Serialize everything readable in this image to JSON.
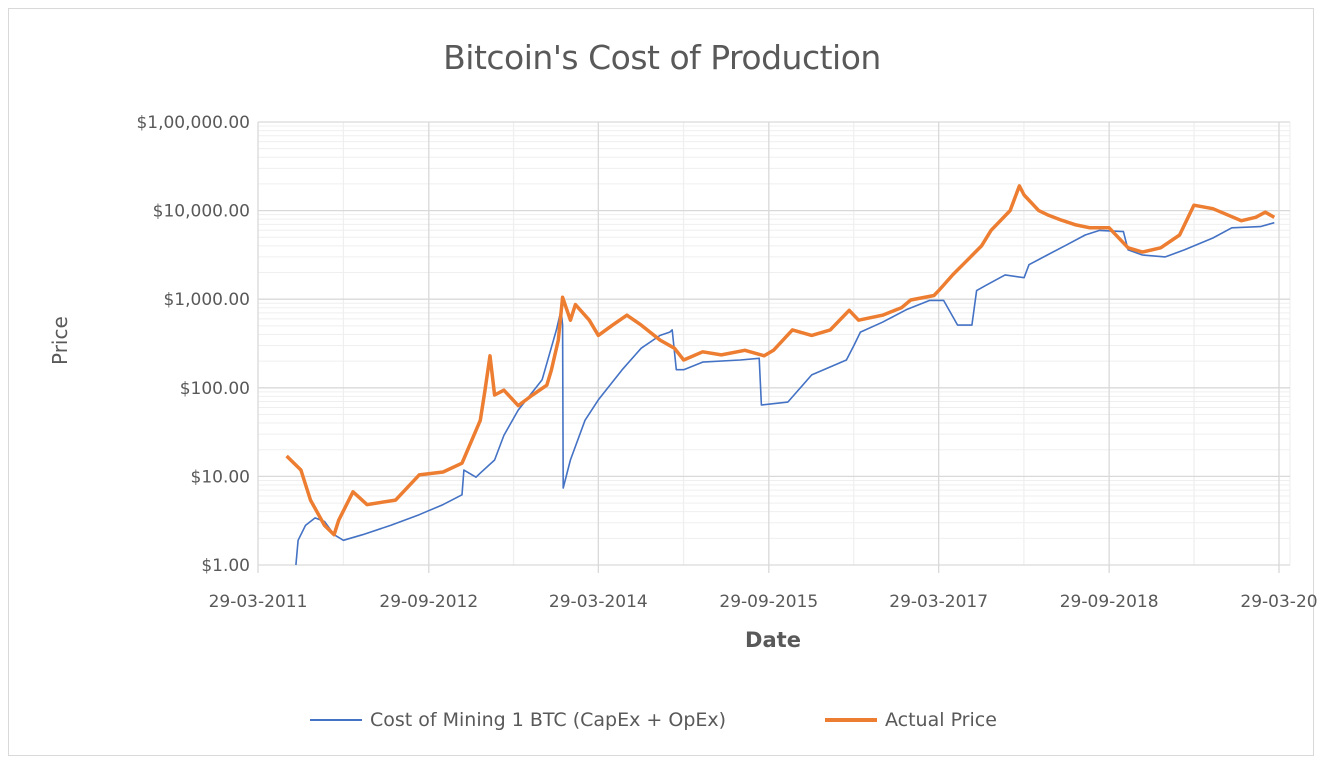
{
  "chart_data": {
    "type": "line",
    "title": "Bitcoin's Cost of Production",
    "xlabel": "Date",
    "ylabel": "Price",
    "y_scale": "log",
    "ylim": [
      1,
      100000
    ],
    "y_ticks": [
      1,
      10,
      100,
      1000,
      10000,
      100000
    ],
    "y_tick_labels": [
      "$1.00",
      "$10.00",
      "$100.00",
      "$1,000.00",
      "$10,000.00",
      "$1,00,000.00"
    ],
    "x_ticks": [
      "2011-03-29",
      "2012-09-29",
      "2014-03-29",
      "2015-09-29",
      "2017-03-29",
      "2018-09-29",
      "2020-03-29"
    ],
    "x_tick_labels": [
      "29-03-2011",
      "29-09-2012",
      "29-03-2014",
      "29-09-2015",
      "29-03-2017",
      "29-09-2018",
      "29-03-20"
    ],
    "grid": true,
    "legend_position": "bottom",
    "series": [
      {
        "name": "Cost of Mining 1 BTC (CapEx + OpEx)",
        "color": "#4472c4",
        "points": [
          [
            "2011-07-29",
            1
          ],
          [
            "2011-08-05",
            1.9
          ],
          [
            "2011-08-29",
            2.8
          ],
          [
            "2011-09-29",
            3.4
          ],
          [
            "2011-10-29",
            3.1
          ],
          [
            "2011-11-29",
            2.2
          ],
          [
            "2011-12-29",
            1.9
          ],
          [
            "2012-02-29",
            2.2
          ],
          [
            "2012-05-29",
            2.8
          ],
          [
            "2012-08-29",
            3.7
          ],
          [
            "2012-11-14",
            4.8
          ],
          [
            "2013-01-14",
            6.2
          ],
          [
            "2013-01-20",
            11.8
          ],
          [
            "2013-02-28",
            9.8
          ],
          [
            "2013-03-14",
            10.9
          ],
          [
            "2013-04-29",
            15.3
          ],
          [
            "2013-05-29",
            29
          ],
          [
            "2013-07-14",
            56
          ],
          [
            "2013-09-29",
            123
          ],
          [
            "2013-11-14",
            450
          ],
          [
            "2013-11-29",
            760
          ],
          [
            "2013-12-04",
            510
          ],
          [
            "2013-12-06",
            7.4
          ],
          [
            "2013-12-29",
            15.3
          ],
          [
            "2014-02-14",
            43
          ],
          [
            "2014-03-29",
            73
          ],
          [
            "2014-06-14",
            160
          ],
          [
            "2014-08-14",
            280
          ],
          [
            "2014-10-14",
            390
          ],
          [
            "2014-11-14",
            425
          ],
          [
            "2014-11-22",
            450
          ],
          [
            "2014-12-05",
            160
          ],
          [
            "2014-12-29",
            160
          ],
          [
            "2015-02-28",
            195
          ],
          [
            "2015-06-29",
            206
          ],
          [
            "2015-08-29",
            215
          ],
          [
            "2015-09-05",
            64
          ],
          [
            "2015-11-29",
            69
          ],
          [
            "2016-02-14",
            140
          ],
          [
            "2016-06-05",
            206
          ],
          [
            "2016-06-29",
            300
          ],
          [
            "2016-07-20",
            425
          ],
          [
            "2016-09-29",
            550
          ],
          [
            "2016-12-14",
            760
          ],
          [
            "2017-02-28",
            970
          ],
          [
            "2017-04-14",
            970
          ],
          [
            "2017-05-29",
            510
          ],
          [
            "2017-07-14",
            510
          ],
          [
            "2017-07-29",
            1250
          ],
          [
            "2017-08-29",
            1440
          ],
          [
            "2017-10-29",
            1880
          ],
          [
            "2017-12-29",
            1750
          ],
          [
            "2018-01-14",
            2450
          ],
          [
            "2018-03-14",
            3150
          ],
          [
            "2018-05-14",
            4080
          ],
          [
            "2018-07-14",
            5300
          ],
          [
            "2018-08-29",
            5980
          ],
          [
            "2018-11-14",
            5800
          ],
          [
            "2018-11-29",
            3600
          ],
          [
            "2019-01-14",
            3150
          ],
          [
            "2019-03-29",
            3000
          ],
          [
            "2019-05-29",
            3600
          ],
          [
            "2019-08-29",
            4900
          ],
          [
            "2019-10-29",
            6400
          ],
          [
            "2020-01-29",
            6600
          ],
          [
            "2020-03-14",
            7300
          ]
        ]
      },
      {
        "name": "Actual Price",
        "color": "#ed7d31",
        "points": [
          [
            "2011-06-29",
            17
          ],
          [
            "2011-08-14",
            11.8
          ],
          [
            "2011-09-14",
            5.4
          ],
          [
            "2011-10-29",
            2.8
          ],
          [
            "2011-11-29",
            2.2
          ],
          [
            "2011-12-14",
            3.2
          ],
          [
            "2012-01-29",
            6.7
          ],
          [
            "2012-03-14",
            4.8
          ],
          [
            "2012-06-14",
            5.4
          ],
          [
            "2012-08-29",
            10.4
          ],
          [
            "2012-11-14",
            11.2
          ],
          [
            "2013-01-14",
            14.1
          ],
          [
            "2013-03-14",
            43
          ],
          [
            "2013-03-29",
            94
          ],
          [
            "2013-04-14",
            230
          ],
          [
            "2013-04-29",
            83
          ],
          [
            "2013-05-29",
            94
          ],
          [
            "2013-07-14",
            63
          ],
          [
            "2013-08-29",
            83
          ],
          [
            "2013-10-14",
            107
          ],
          [
            "2013-10-29",
            159
          ],
          [
            "2013-11-20",
            345
          ],
          [
            "2013-12-04",
            1050
          ],
          [
            "2013-12-29",
            580
          ],
          [
            "2014-01-14",
            870
          ],
          [
            "2014-02-28",
            580
          ],
          [
            "2014-03-29",
            390
          ],
          [
            "2014-05-14",
            510
          ],
          [
            "2014-06-29",
            660
          ],
          [
            "2014-08-14",
            510
          ],
          [
            "2014-10-14",
            345
          ],
          [
            "2014-11-29",
            280
          ],
          [
            "2014-12-29",
            206
          ],
          [
            "2015-02-28",
            255
          ],
          [
            "2015-04-29",
            235
          ],
          [
            "2015-07-14",
            265
          ],
          [
            "2015-09-14",
            230
          ],
          [
            "2015-10-14",
            265
          ],
          [
            "2015-12-14",
            450
          ],
          [
            "2016-02-14",
            390
          ],
          [
            "2016-04-14",
            450
          ],
          [
            "2016-06-14",
            750
          ],
          [
            "2016-07-14",
            580
          ],
          [
            "2016-09-29",
            660
          ],
          [
            "2016-11-29",
            800
          ],
          [
            "2016-12-29",
            980
          ],
          [
            "2017-03-14",
            1100
          ],
          [
            "2017-03-29",
            1250
          ],
          [
            "2017-05-14",
            1900
          ],
          [
            "2017-06-29",
            2750
          ],
          [
            "2017-08-14",
            4000
          ],
          [
            "2017-09-14",
            6000
          ],
          [
            "2017-11-14",
            10000
          ],
          [
            "2017-12-14",
            19000
          ],
          [
            "2017-12-29",
            15000
          ],
          [
            "2018-02-14",
            10000
          ],
          [
            "2018-03-14",
            9000
          ],
          [
            "2018-04-29",
            7800
          ],
          [
            "2018-06-14",
            6900
          ],
          [
            "2018-07-29",
            6400
          ],
          [
            "2018-09-29",
            6400
          ],
          [
            "2018-11-29",
            3800
          ],
          [
            "2019-01-14",
            3400
          ],
          [
            "2019-03-14",
            3800
          ],
          [
            "2019-05-14",
            5300
          ],
          [
            "2019-06-29",
            11500
          ],
          [
            "2019-08-29",
            10500
          ],
          [
            "2019-10-14",
            9000
          ],
          [
            "2019-11-29",
            7700
          ],
          [
            "2020-01-14",
            8400
          ],
          [
            "2020-02-14",
            9600
          ],
          [
            "2020-03-14",
            8400
          ]
        ]
      }
    ]
  },
  "colors": {
    "grid_major": "#d9d9d9",
    "grid_minor": "#efefef",
    "text": "#595959"
  }
}
